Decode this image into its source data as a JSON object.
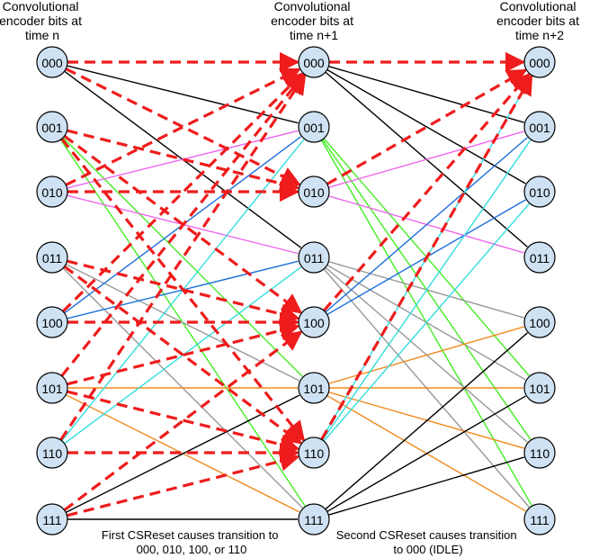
{
  "columns": [
    {
      "header": [
        "Convolutional",
        "encoder bits at",
        "time n"
      ]
    },
    {
      "header": [
        "Convolutional",
        "encoder bits at",
        "time n+1"
      ]
    },
    {
      "header": [
        "Convolutional",
        "encoder bits at",
        "time n+2"
      ]
    }
  ],
  "states": [
    "000",
    "001",
    "010",
    "011",
    "100",
    "101",
    "110",
    "111"
  ],
  "captions": [
    [
      "First CSReset causes transition to",
      "000, 010, 100, or 110"
    ],
    [
      "Second CSReset causes transition",
      "to 000 (IDLE)"
    ]
  ],
  "colors": {
    "reset": "#ee1c1c",
    "from_000": "#000000",
    "from_001": "#44ee22",
    "from_010": "#ee66ee",
    "from_011": "#999999",
    "from_100": "#1e6fd9",
    "from_101": "#f08a1e",
    "from_110": "#33dddd",
    "from_111": "#000000"
  },
  "transitions": {
    "normal": [
      {
        "from": "000",
        "to": [
          "001",
          "011"
        ],
        "color_key": "from_000"
      },
      {
        "from": "001",
        "to": [
          "101",
          "111"
        ],
        "color_key": "from_001"
      },
      {
        "from": "010",
        "to": [
          "001",
          "011"
        ],
        "color_key": "from_010"
      },
      {
        "from": "011",
        "to": [
          "101",
          "111"
        ],
        "color_key": "from_011"
      },
      {
        "from": "100",
        "to": [
          "001",
          "011"
        ],
        "color_key": "from_100"
      },
      {
        "from": "101",
        "to": [
          "101",
          "111"
        ],
        "color_key": "from_101"
      },
      {
        "from": "110",
        "to": [
          "001",
          "011"
        ],
        "color_key": "from_110"
      },
      {
        "from": "111",
        "to": [
          "101",
          "111"
        ],
        "color_key": "from_111"
      }
    ],
    "normal_n1_to_n2": [
      {
        "from": "000",
        "to": [
          "001",
          "010",
          "011"
        ],
        "color_key": "from_000"
      },
      {
        "from": "001",
        "to": [
          "101",
          "110",
          "111"
        ],
        "color_key": "from_001"
      },
      {
        "from": "010",
        "to": [
          "001",
          "011"
        ],
        "color_key": "from_010"
      },
      {
        "from": "011",
        "to": [
          "100",
          "101",
          "110",
          "111"
        ],
        "color_key": "from_011"
      },
      {
        "from": "100",
        "to": [
          "001",
          "010"
        ],
        "color_key": "from_100"
      },
      {
        "from": "101",
        "to": [
          "100",
          "101",
          "110",
          "111"
        ],
        "color_key": "from_101"
      },
      {
        "from": "110",
        "to": [
          "000",
          "001",
          "010"
        ],
        "color_key": "from_110"
      },
      {
        "from": "111",
        "to": [
          "100",
          "101",
          "110"
        ],
        "color_key": "from_111"
      }
    ],
    "reset_first": [
      {
        "from": "000",
        "to": [
          "000",
          "010"
        ]
      },
      {
        "from": "001",
        "to": [
          "010",
          "100",
          "110"
        ]
      },
      {
        "from": "010",
        "to": [
          "000",
          "010"
        ]
      },
      {
        "from": "011",
        "to": [
          "100",
          "110"
        ]
      },
      {
        "from": "100",
        "to": [
          "000",
          "100"
        ]
      },
      {
        "from": "101",
        "to": [
          "000",
          "100",
          "110"
        ]
      },
      {
        "from": "110",
        "to": [
          "000",
          "110"
        ]
      },
      {
        "from": "111",
        "to": [
          "100",
          "110"
        ]
      }
    ],
    "reset_second": [
      {
        "from": "000",
        "to": [
          "000"
        ]
      },
      {
        "from": "010",
        "to": [
          "000"
        ]
      },
      {
        "from": "100",
        "to": [
          "000"
        ]
      },
      {
        "from": "110",
        "to": [
          "000"
        ]
      }
    ]
  }
}
